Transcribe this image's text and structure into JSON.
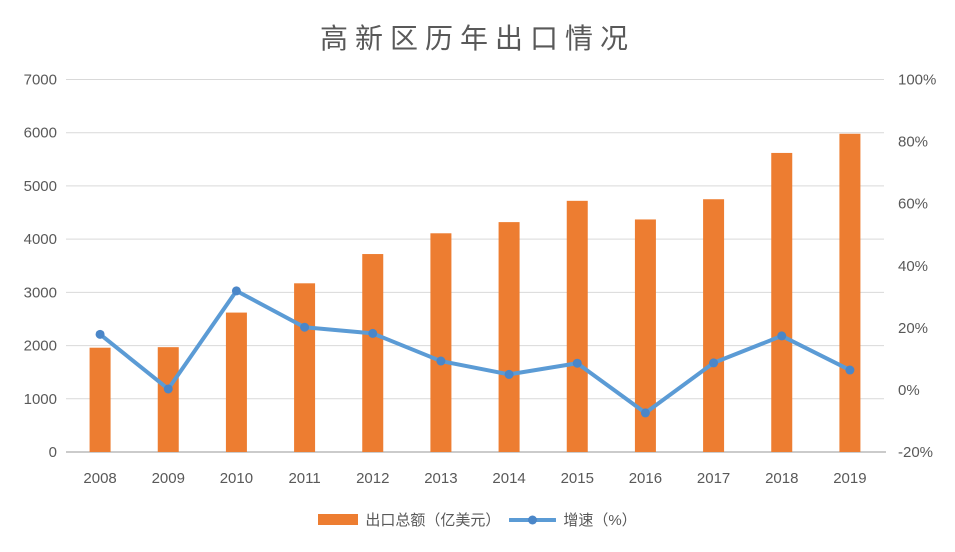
{
  "chart_data": {
    "type": "combo-bar-line",
    "title": "高新区历年出口情况",
    "categories": [
      "2008",
      "2009",
      "2010",
      "2011",
      "2012",
      "2013",
      "2014",
      "2015",
      "2016",
      "2017",
      "2018",
      "2019"
    ],
    "series": [
      {
        "name": "出口总额（亿美元）",
        "type": "bar",
        "axis": "left",
        "color": "#ED7D31",
        "values": [
          1960,
          1970,
          2620,
          3170,
          3720,
          4110,
          4320,
          4720,
          4370,
          4750,
          5620,
          5980
        ]
      },
      {
        "name": "增速（%）",
        "type": "line",
        "axis": "right",
        "color": "#5B9BD5",
        "marker_color": "#4A86C8",
        "values": [
          17.9,
          0.3,
          31.9,
          20.2,
          18.2,
          9.3,
          5.0,
          8.6,
          -7.4,
          8.7,
          17.4,
          6.4
        ]
      }
    ],
    "left_axis": {
      "min": 0,
      "max": 7000,
      "tick_labels": [
        "0",
        "1000",
        "2000",
        "3000",
        "4000",
        "5000",
        "6000",
        "7000"
      ]
    },
    "right_axis": {
      "min": -20,
      "max": 100,
      "tick_labels": [
        "-20%",
        "0%",
        "20%",
        "40%",
        "60%",
        "80%",
        "100%"
      ]
    },
    "grid": true,
    "legend_position": "bottom",
    "colors": {
      "grid": "#D9D9D9",
      "axis_line": "#CBCBCB",
      "text": "#595959",
      "title": "#595959"
    }
  }
}
